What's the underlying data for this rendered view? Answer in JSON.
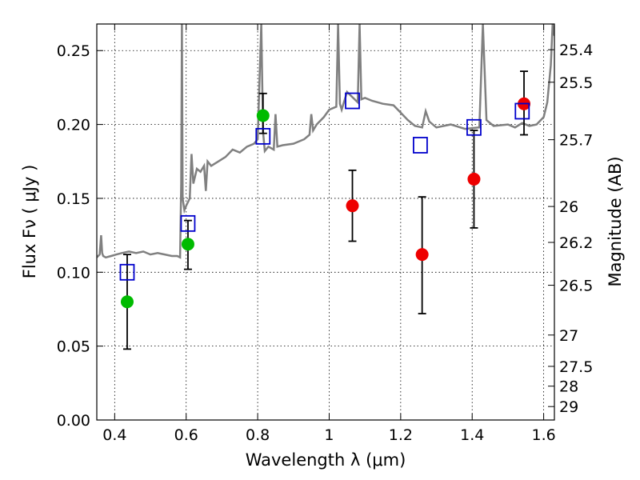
{
  "chart_data": {
    "type": "scatter",
    "xlabel": "Wavelength  λ (μm)",
    "ylabel": "Flux  Fν  ( μJy )",
    "y2label": "Magnitude (AB)",
    "xlim": [
      0.35,
      1.63
    ],
    "ylim": [
      0.0,
      0.268
    ],
    "grid": true,
    "x_ticks": [
      0.4,
      0.6,
      0.8,
      1.0,
      1.2,
      1.4,
      1.6
    ],
    "x_tick_labels": [
      "0.4",
      "0.6",
      "0.8",
      "1",
      "1.2",
      "1.4",
      "1.6"
    ],
    "y_ticks": [
      0.0,
      0.05,
      0.1,
      0.15,
      0.2,
      0.25
    ],
    "y_tick_labels": [
      "0.00",
      "0.05",
      "0.10",
      "0.15",
      "0.20",
      "0.25"
    ],
    "y2_ticks": [
      {
        "label": "25.4",
        "flux": 0.2506
      },
      {
        "label": "25.5",
        "flux": 0.2286
      },
      {
        "label": "25.7",
        "flux": 0.1897
      },
      {
        "label": "26",
        "flux": 0.1445
      },
      {
        "label": "26.2",
        "flux": 0.1202
      },
      {
        "label": "26.5",
        "flux": 0.0912
      },
      {
        "label": "27",
        "flux": 0.0575
      },
      {
        "label": "27.5",
        "flux": 0.0363
      },
      {
        "label": "28",
        "flux": 0.0229
      },
      {
        "label": "29",
        "flux": 0.0091
      }
    ],
    "spectrum": {
      "color": "#808080",
      "x": [
        0.35,
        0.358,
        0.362,
        0.365,
        0.368,
        0.375,
        0.39,
        0.405,
        0.42,
        0.44,
        0.46,
        0.48,
        0.5,
        0.52,
        0.54,
        0.56,
        0.575,
        0.583,
        0.586,
        0.588,
        0.59,
        0.595,
        0.6,
        0.61,
        0.615,
        0.62,
        0.625,
        0.63,
        0.64,
        0.65,
        0.655,
        0.66,
        0.67,
        0.69,
        0.71,
        0.73,
        0.75,
        0.77,
        0.79,
        0.8,
        0.81,
        0.815,
        0.82,
        0.83,
        0.845,
        0.85,
        0.855,
        0.87,
        0.9,
        0.93,
        0.945,
        0.95,
        0.955,
        0.965,
        0.985,
        1.0,
        1.02,
        1.025,
        1.03,
        1.035,
        1.05,
        1.08,
        1.085,
        1.09,
        1.1,
        1.12,
        1.15,
        1.18,
        1.2,
        1.22,
        1.24,
        1.26,
        1.27,
        1.28,
        1.3,
        1.34,
        1.38,
        1.42,
        1.43,
        1.44,
        1.46,
        1.5,
        1.52,
        1.54,
        1.56,
        1.58,
        1.6,
        1.61,
        1.62,
        1.625,
        1.63
      ],
      "y": [
        0.11,
        0.112,
        0.125,
        0.113,
        0.111,
        0.11,
        0.111,
        0.112,
        0.113,
        0.114,
        0.113,
        0.114,
        0.112,
        0.113,
        0.112,
        0.111,
        0.111,
        0.11,
        0.16,
        0.268,
        0.15,
        0.142,
        0.145,
        0.15,
        0.18,
        0.16,
        0.165,
        0.17,
        0.168,
        0.172,
        0.155,
        0.175,
        0.172,
        0.175,
        0.178,
        0.183,
        0.181,
        0.185,
        0.187,
        0.19,
        0.268,
        0.195,
        0.182,
        0.185,
        0.183,
        0.207,
        0.185,
        0.186,
        0.187,
        0.19,
        0.193,
        0.207,
        0.196,
        0.2,
        0.205,
        0.21,
        0.212,
        0.268,
        0.214,
        0.21,
        0.222,
        0.215,
        0.268,
        0.217,
        0.218,
        0.216,
        0.214,
        0.213,
        0.208,
        0.203,
        0.199,
        0.198,
        0.209,
        0.202,
        0.198,
        0.2,
        0.197,
        0.198,
        0.268,
        0.203,
        0.199,
        0.2,
        0.198,
        0.201,
        0.199,
        0.2,
        0.205,
        0.215,
        0.24,
        0.268,
        0.26
      ]
    },
    "series": [
      {
        "marker": "circle",
        "color": "#00bb00",
        "points": [
          {
            "x": 0.435,
            "y": 0.08
          },
          {
            "x": 0.605,
            "y": 0.119
          },
          {
            "x": 0.815,
            "y": 0.206
          }
        ]
      },
      {
        "marker": "circle",
        "color": "#ee0000",
        "points": [
          {
            "x": 1.065,
            "y": 0.145
          },
          {
            "x": 1.26,
            "y": 0.112
          },
          {
            "x": 1.405,
            "y": 0.163
          },
          {
            "x": 1.545,
            "y": 0.214
          }
        ]
      },
      {
        "marker": "square-open",
        "color": "#0000cc",
        "points": [
          {
            "x": 0.435,
            "y": 0.1
          },
          {
            "x": 0.605,
            "y": 0.133
          },
          {
            "x": 0.815,
            "y": 0.192
          },
          {
            "x": 1.065,
            "y": 0.216
          },
          {
            "x": 1.255,
            "y": 0.186
          },
          {
            "x": 1.405,
            "y": 0.198
          },
          {
            "x": 1.54,
            "y": 0.209
          }
        ]
      }
    ],
    "error_bars": [
      {
        "x": 0.435,
        "low": 0.048,
        "high": 0.112
      },
      {
        "x": 0.605,
        "low": 0.102,
        "high": 0.135
      },
      {
        "x": 0.815,
        "low": 0.194,
        "high": 0.221
      },
      {
        "x": 1.065,
        "low": 0.121,
        "high": 0.169
      },
      {
        "x": 1.26,
        "low": 0.072,
        "high": 0.151
      },
      {
        "x": 1.405,
        "low": 0.13,
        "high": 0.196
      },
      {
        "x": 1.545,
        "low": 0.193,
        "high": 0.236
      }
    ]
  }
}
